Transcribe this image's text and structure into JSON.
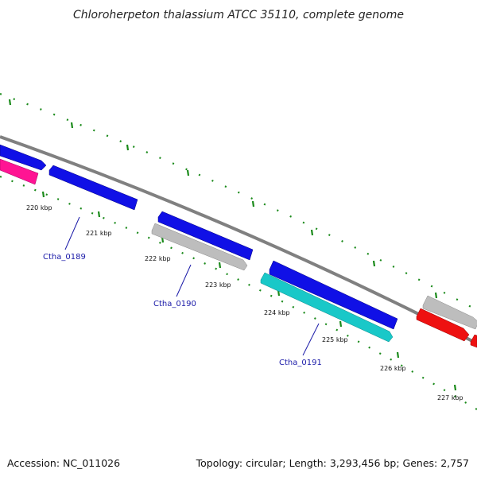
{
  "title": "Chloroherpeton thalassium ATCC 35110, complete genome",
  "footer": {
    "accession": "Accession: NC_011026",
    "topology": "Topology: circular; Length: 3,293,456 bp; Genes: 2,757"
  },
  "colors": {
    "backbone": "#808080",
    "tick": "#1a8a1a",
    "gene_blue": "#1010e6",
    "gene_gray": "#bdbdbd",
    "gene_cyan": "#19c8c8",
    "gene_magenta": "#ff1493",
    "gene_red": "#ee1111",
    "label": "#1a1aa8"
  },
  "kbp_labels": [
    "220 kbp",
    "221 kbp",
    "222 kbp",
    "223 kbp",
    "224 kbp",
    "225 kbp",
    "226 kbp",
    "227 kbp"
  ],
  "gene_labels": [
    "Ctha_0189",
    "Ctha_0190",
    "Ctha_0191"
  ],
  "genes": [
    {
      "id": "g0",
      "color": "gene_blue",
      "strand": "forward"
    },
    {
      "id": "g1",
      "color": "gene_magenta",
      "strand": "reverse"
    },
    {
      "id": "g2",
      "color": "gene_blue",
      "strand": "reverse",
      "name": "Ctha_0189"
    },
    {
      "id": "g3",
      "color": "gene_blue",
      "strand": "reverse"
    },
    {
      "id": "g4",
      "color": "gene_gray",
      "strand": "forward",
      "name": "Ctha_0190"
    },
    {
      "id": "g5",
      "color": "gene_blue",
      "strand": "reverse"
    },
    {
      "id": "g6",
      "color": "gene_cyan",
      "strand": "forward",
      "name": "Ctha_0191"
    },
    {
      "id": "g7",
      "color": "gene_gray",
      "strand": "forward"
    },
    {
      "id": "g8",
      "color": "gene_red",
      "strand": "forward"
    },
    {
      "id": "g9",
      "color": "gene_red",
      "strand": "reverse"
    }
  ]
}
